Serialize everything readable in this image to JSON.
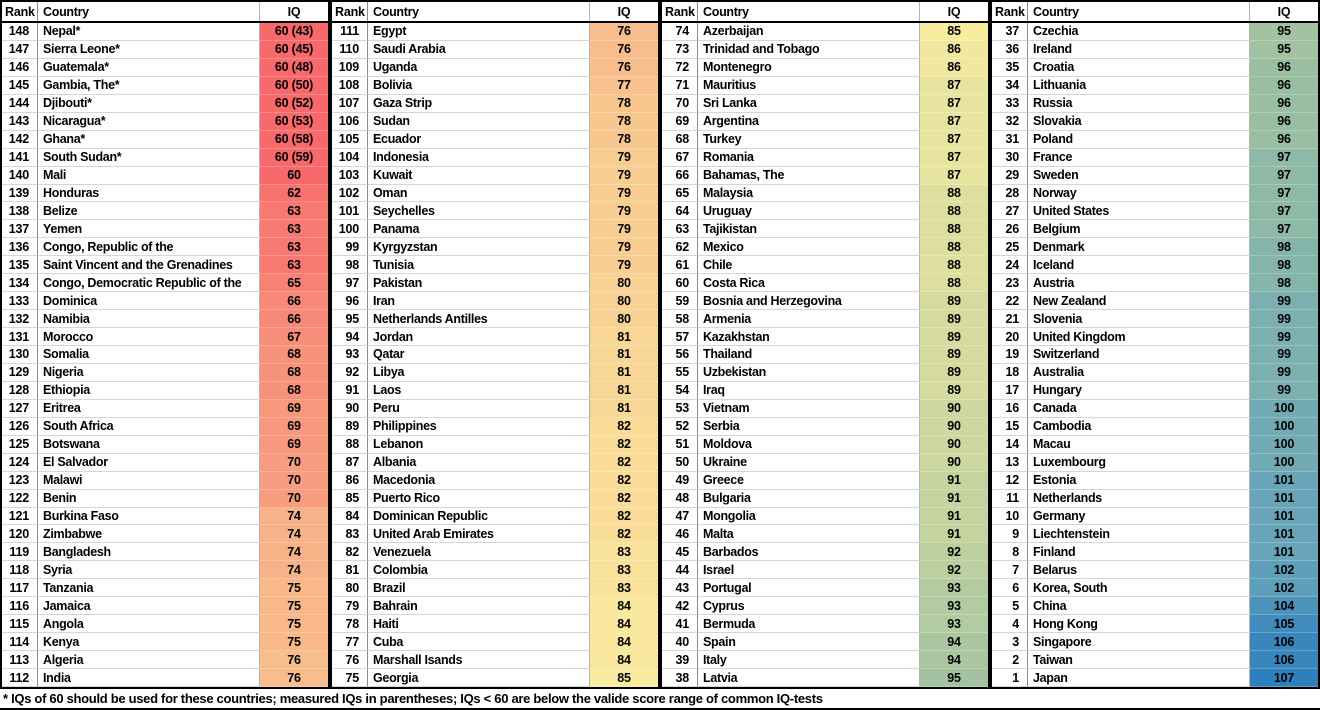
{
  "table": {
    "headers": {
      "rank": "Rank",
      "country": "Country",
      "iq": "IQ"
    },
    "color_scale": {
      "description": "IQ cell background color scale, interpolated by IQ value",
      "stops": [
        [
          60,
          "#F8696B"
        ],
        [
          85,
          "#F8EC9E"
        ],
        [
          96,
          "#99BEA2"
        ],
        [
          101,
          "#68A5B9"
        ],
        [
          107,
          "#2E80BD"
        ]
      ]
    },
    "columns": [
      {
        "rows": [
          [
            148,
            "Nepal*",
            "60 (43)"
          ],
          [
            147,
            "Sierra Leone*",
            "60 (45)"
          ],
          [
            146,
            "Guatemala*",
            "60 (48)"
          ],
          [
            145,
            "Gambia, The*",
            "60 (50)"
          ],
          [
            144,
            "Djibouti*",
            "60 (52)"
          ],
          [
            143,
            "Nicaragua*",
            "60 (53)"
          ],
          [
            142,
            "Ghana*",
            "60 (58)"
          ],
          [
            141,
            "South Sudan*",
            "60 (59)"
          ],
          [
            140,
            "Mali",
            "60"
          ],
          [
            139,
            "Honduras",
            "62"
          ],
          [
            138,
            "Belize",
            "63"
          ],
          [
            137,
            "Yemen",
            "63"
          ],
          [
            136,
            "Congo, Republic of the",
            "63"
          ],
          [
            135,
            "Saint Vincent and the Grenadines",
            "63"
          ],
          [
            134,
            "Congo, Democratic Republic of the",
            "65"
          ],
          [
            133,
            "Dominica",
            "66"
          ],
          [
            132,
            "Namibia",
            "66"
          ],
          [
            131,
            "Morocco",
            "67"
          ],
          [
            130,
            "Somalia",
            "68"
          ],
          [
            129,
            "Nigeria",
            "68"
          ],
          [
            128,
            "Ethiopia",
            "68"
          ],
          [
            127,
            "Eritrea",
            "69"
          ],
          [
            126,
            "South Africa",
            "69"
          ],
          [
            125,
            "Botswana",
            "69"
          ],
          [
            124,
            "El Salvador",
            "70"
          ],
          [
            123,
            "Malawi",
            "70"
          ],
          [
            122,
            "Benin",
            "70"
          ],
          [
            121,
            "Burkina Faso",
            "74"
          ],
          [
            120,
            "Zimbabwe",
            "74"
          ],
          [
            119,
            "Bangladesh",
            "74"
          ],
          [
            118,
            "Syria",
            "74"
          ],
          [
            117,
            "Tanzania",
            "75"
          ],
          [
            116,
            "Jamaica",
            "75"
          ],
          [
            115,
            "Angola",
            "75"
          ],
          [
            114,
            "Kenya",
            "75"
          ],
          [
            113,
            "Algeria",
            "76"
          ],
          [
            112,
            "India",
            "76"
          ]
        ]
      },
      {
        "rows": [
          [
            111,
            "Egypt",
            "76"
          ],
          [
            110,
            "Saudi Arabia",
            "76"
          ],
          [
            109,
            "Uganda",
            "76"
          ],
          [
            108,
            "Bolivia",
            "77"
          ],
          [
            107,
            "Gaza Strip",
            "78"
          ],
          [
            106,
            "Sudan",
            "78"
          ],
          [
            105,
            "Ecuador",
            "78"
          ],
          [
            104,
            "Indonesia",
            "79"
          ],
          [
            103,
            "Kuwait",
            "79"
          ],
          [
            102,
            "Oman",
            "79"
          ],
          [
            101,
            "Seychelles",
            "79"
          ],
          [
            100,
            "Panama",
            "79"
          ],
          [
            99,
            "Kyrgyzstan",
            "79"
          ],
          [
            98,
            "Tunisia",
            "79"
          ],
          [
            97,
            "Pakistan",
            "80"
          ],
          [
            96,
            "Iran",
            "80"
          ],
          [
            95,
            "Netherlands Antilles",
            "80"
          ],
          [
            94,
            "Jordan",
            "81"
          ],
          [
            93,
            "Qatar",
            "81"
          ],
          [
            92,
            "Libya",
            "81"
          ],
          [
            91,
            "Laos",
            "81"
          ],
          [
            90,
            "Peru",
            "81"
          ],
          [
            89,
            "Philippines",
            "82"
          ],
          [
            88,
            "Lebanon",
            "82"
          ],
          [
            87,
            "Albania",
            "82"
          ],
          [
            86,
            "Macedonia",
            "82"
          ],
          [
            85,
            "Puerto Rico",
            "82"
          ],
          [
            84,
            "Dominican Republic",
            "82"
          ],
          [
            83,
            "United Arab Emirates",
            "82"
          ],
          [
            82,
            "Venezuela",
            "83"
          ],
          [
            81,
            "Colombia",
            "83"
          ],
          [
            80,
            "Brazil",
            "83"
          ],
          [
            79,
            "Bahrain",
            "84"
          ],
          [
            78,
            "Haiti",
            "84"
          ],
          [
            77,
            "Cuba",
            "84"
          ],
          [
            76,
            "Marshall Isands",
            "84"
          ],
          [
            75,
            "Georgia",
            "85"
          ]
        ]
      },
      {
        "rows": [
          [
            74,
            "Azerbaijan",
            "85"
          ],
          [
            73,
            "Trinidad and Tobago",
            "86"
          ],
          [
            72,
            "Montenegro",
            "86"
          ],
          [
            71,
            "Mauritius",
            "87"
          ],
          [
            70,
            "Sri Lanka",
            "87"
          ],
          [
            69,
            "Argentina",
            "87"
          ],
          [
            68,
            "Turkey",
            "87"
          ],
          [
            67,
            "Romania",
            "87"
          ],
          [
            66,
            "Bahamas, The",
            "87"
          ],
          [
            65,
            "Malaysia",
            "88"
          ],
          [
            64,
            "Uruguay",
            "88"
          ],
          [
            63,
            "Tajikistan",
            "88"
          ],
          [
            62,
            "Mexico",
            "88"
          ],
          [
            61,
            "Chile",
            "88"
          ],
          [
            60,
            "Costa Rica",
            "88"
          ],
          [
            59,
            "Bosnia and Herzegovina",
            "89"
          ],
          [
            58,
            "Armenia",
            "89"
          ],
          [
            57,
            "Kazakhstan",
            "89"
          ],
          [
            56,
            "Thailand",
            "89"
          ],
          [
            55,
            "Uzbekistan",
            "89"
          ],
          [
            54,
            "Iraq",
            "89"
          ],
          [
            53,
            "Vietnam",
            "90"
          ],
          [
            52,
            "Serbia",
            "90"
          ],
          [
            51,
            "Moldova",
            "90"
          ],
          [
            50,
            "Ukraine",
            "90"
          ],
          [
            49,
            "Greece",
            "91"
          ],
          [
            48,
            "Bulgaria",
            "91"
          ],
          [
            47,
            "Mongolia",
            "91"
          ],
          [
            46,
            "Malta",
            "91"
          ],
          [
            45,
            "Barbados",
            "92"
          ],
          [
            44,
            "Israel",
            "92"
          ],
          [
            43,
            "Portugal",
            "93"
          ],
          [
            42,
            "Cyprus",
            "93"
          ],
          [
            41,
            "Bermuda",
            "93"
          ],
          [
            40,
            "Spain",
            "94"
          ],
          [
            39,
            "Italy",
            "94"
          ],
          [
            38,
            "Latvia",
            "95"
          ]
        ]
      },
      {
        "rows": [
          [
            37,
            "Czechia",
            "95"
          ],
          [
            36,
            "Ireland",
            "95"
          ],
          [
            35,
            "Croatia",
            "96"
          ],
          [
            34,
            "Lithuania",
            "96"
          ],
          [
            33,
            "Russia",
            "96"
          ],
          [
            32,
            "Slovakia",
            "96"
          ],
          [
            31,
            "Poland",
            "96"
          ],
          [
            30,
            "France",
            "97"
          ],
          [
            29,
            "Sweden",
            "97"
          ],
          [
            28,
            "Norway",
            "97"
          ],
          [
            27,
            "United States",
            "97"
          ],
          [
            26,
            "Belgium",
            "97"
          ],
          [
            25,
            "Denmark",
            "98"
          ],
          [
            24,
            "Iceland",
            "98"
          ],
          [
            23,
            "Austria",
            "98"
          ],
          [
            22,
            "New Zealand",
            "99"
          ],
          [
            21,
            "Slovenia",
            "99"
          ],
          [
            20,
            "United Kingdom",
            "99"
          ],
          [
            19,
            "Switzerland",
            "99"
          ],
          [
            18,
            "Australia",
            "99"
          ],
          [
            17,
            "Hungary",
            "99"
          ],
          [
            16,
            "Canada",
            "100"
          ],
          [
            15,
            "Cambodia",
            "100"
          ],
          [
            14,
            "Macau",
            "100"
          ],
          [
            13,
            "Luxembourg",
            "100"
          ],
          [
            12,
            "Estonia",
            "101"
          ],
          [
            11,
            "Netherlands",
            "101"
          ],
          [
            10,
            "Germany",
            "101"
          ],
          [
            9,
            "Liechtenstein",
            "101"
          ],
          [
            8,
            "Finland",
            "101"
          ],
          [
            7,
            "Belarus",
            "102"
          ],
          [
            6,
            "Korea, South",
            "102"
          ],
          [
            5,
            "China",
            "104"
          ],
          [
            4,
            "Hong Kong",
            "105"
          ],
          [
            3,
            "Singapore",
            "106"
          ],
          [
            2,
            "Taiwan",
            "106"
          ],
          [
            1,
            "Japan",
            "107"
          ]
        ]
      }
    ]
  },
  "footnote": "* IQs of 60 should be used for these countries; measured IQs in parentheses; IQs < 60 are below the valide score range of common IQ-tests"
}
